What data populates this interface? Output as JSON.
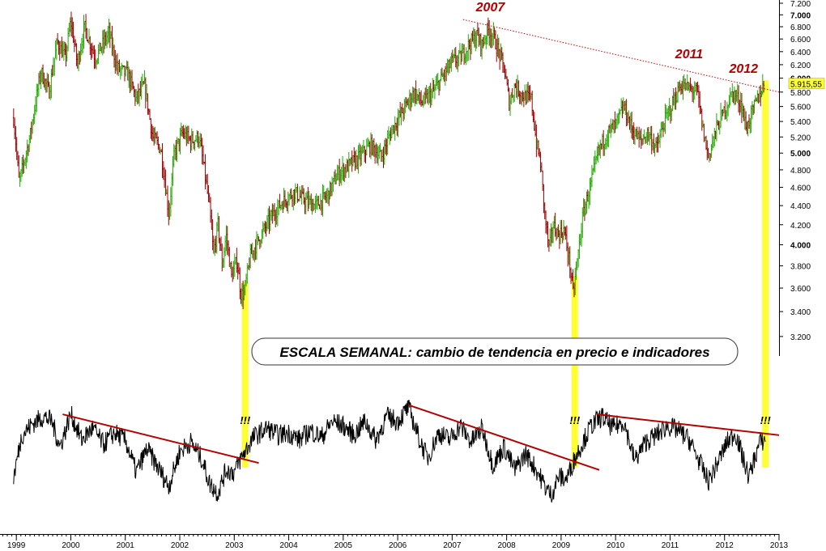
{
  "chart_data": {
    "type": "line",
    "title": "ESCALA SEMANAL: cambio de tendencia en precio e indicadores",
    "price_panel": {
      "type": "candlestick",
      "scale": "log",
      "ylim": [
        3100,
        7200
      ],
      "y_ticks": [
        {
          "value": 3200,
          "label": "3.200",
          "major": false
        },
        {
          "value": 3400,
          "label": "3.400",
          "major": false
        },
        {
          "value": 3600,
          "label": "3.600",
          "major": false
        },
        {
          "value": 3800,
          "label": "3.800",
          "major": false
        },
        {
          "value": 4000,
          "label": "4.000",
          "major": true
        },
        {
          "value": 4200,
          "label": "4.200",
          "major": false
        },
        {
          "value": 4400,
          "label": "4.400",
          "major": false
        },
        {
          "value": 4600,
          "label": "4.600",
          "major": false
        },
        {
          "value": 4800,
          "label": "4.800",
          "major": false
        },
        {
          "value": 5000,
          "label": "5.000",
          "major": true
        },
        {
          "value": 5200,
          "label": "5.200",
          "major": false
        },
        {
          "value": 5400,
          "label": "5.400",
          "major": false
        },
        {
          "value": 5600,
          "label": "5.600",
          "major": false
        },
        {
          "value": 5800,
          "label": "5.800",
          "major": false
        },
        {
          "value": 6000,
          "label": "6.000",
          "major": true
        },
        {
          "value": 6200,
          "label": "6.200",
          "major": false
        },
        {
          "value": 6400,
          "label": "6.400",
          "major": false
        },
        {
          "value": 6600,
          "label": "6.600",
          "major": false
        },
        {
          "value": 6800,
          "label": "6.800",
          "major": false
        },
        {
          "value": 7000,
          "label": "7.000",
          "major": true
        },
        {
          "value": 7200,
          "label": "7.200",
          "major": false
        }
      ],
      "last_price_label": "5.915,55",
      "last_price_value": 5915.55,
      "up_color": "#22aa00",
      "down_color": "#990000",
      "anchors": [
        [
          1998.95,
          5450
        ],
        [
          1999.05,
          4650
        ],
        [
          1999.25,
          5200
        ],
        [
          1999.45,
          6100
        ],
        [
          1999.6,
          5800
        ],
        [
          1999.75,
          6550
        ],
        [
          1999.9,
          6300
        ],
        [
          2000.0,
          6900
        ],
        [
          2000.12,
          6200
        ],
        [
          2000.25,
          6800
        ],
        [
          2000.45,
          6300
        ],
        [
          2000.7,
          6700
        ],
        [
          2000.85,
          6150
        ],
        [
          2001.05,
          6050
        ],
        [
          2001.2,
          5700
        ],
        [
          2001.35,
          5900
        ],
        [
          2001.5,
          5200
        ],
        [
          2001.65,
          5050
        ],
        [
          2001.8,
          4300
        ],
        [
          2001.9,
          5000
        ],
        [
          2002.05,
          5250
        ],
        [
          2002.2,
          5150
        ],
        [
          2002.35,
          5200
        ],
        [
          2002.45,
          4800
        ],
        [
          2002.55,
          4350
        ],
        [
          2002.62,
          3900
        ],
        [
          2002.7,
          4200
        ],
        [
          2002.78,
          3800
        ],
        [
          2002.85,
          4100
        ],
        [
          2002.95,
          3700
        ],
        [
          2003.05,
          3850
        ],
        [
          2003.12,
          3550
        ],
        [
          2003.18,
          3550
        ],
        [
          2003.3,
          3900
        ],
        [
          2003.5,
          4100
        ],
        [
          2003.7,
          4300
        ],
        [
          2003.9,
          4450
        ],
        [
          2004.1,
          4550
        ],
        [
          2004.3,
          4450
        ],
        [
          2004.5,
          4400
        ],
        [
          2004.7,
          4500
        ],
        [
          2004.9,
          4750
        ],
        [
          2005.1,
          4850
        ],
        [
          2005.3,
          4950
        ],
        [
          2005.5,
          5100
        ],
        [
          2005.7,
          4950
        ],
        [
          2005.9,
          5300
        ],
        [
          2006.1,
          5550
        ],
        [
          2006.3,
          5800
        ],
        [
          2006.45,
          5650
        ],
        [
          2006.65,
          5800
        ],
        [
          2006.85,
          6050
        ],
        [
          2007.0,
          6250
        ],
        [
          2007.15,
          6300
        ],
        [
          2007.3,
          6500
        ],
        [
          2007.45,
          6650
        ],
        [
          2007.55,
          6500
        ],
        [
          2007.65,
          6750
        ],
        [
          2007.75,
          6650
        ],
        [
          2007.85,
          6400
        ],
        [
          2007.95,
          6150
        ],
        [
          2008.05,
          5650
        ],
        [
          2008.15,
          5900
        ],
        [
          2008.3,
          5750
        ],
        [
          2008.45,
          5700
        ],
        [
          2008.55,
          5100
        ],
        [
          2008.62,
          4900
        ],
        [
          2008.7,
          4300
        ],
        [
          2008.78,
          3950
        ],
        [
          2008.85,
          4200
        ],
        [
          2008.95,
          4100
        ],
        [
          2009.05,
          4150
        ],
        [
          2009.15,
          3850
        ],
        [
          2009.22,
          3550
        ],
        [
          2009.3,
          3850
        ],
        [
          2009.4,
          4300
        ],
        [
          2009.55,
          4650
        ],
        [
          2009.7,
          5050
        ],
        [
          2009.85,
          5250
        ],
        [
          2010.0,
          5350
        ],
        [
          2010.15,
          5600
        ],
        [
          2010.3,
          5300
        ],
        [
          2010.45,
          5150
        ],
        [
          2010.6,
          5250
        ],
        [
          2010.75,
          5050
        ],
        [
          2010.9,
          5400
        ],
        [
          2011.05,
          5650
        ],
        [
          2011.2,
          5900
        ],
        [
          2011.35,
          5850
        ],
        [
          2011.5,
          5800
        ],
        [
          2011.6,
          5300
        ],
        [
          2011.7,
          4950
        ],
        [
          2011.85,
          5300
        ],
        [
          2012.0,
          5550
        ],
        [
          2012.15,
          5800
        ],
        [
          2012.3,
          5650
        ],
        [
          2012.4,
          5300
        ],
        [
          2012.5,
          5500
        ],
        [
          2012.6,
          5700
        ],
        [
          2012.72,
          5900
        ]
      ]
    },
    "indicator_panel": {
      "type": "line",
      "color": "#000000",
      "anchors": [
        [
          1998.95,
          -0.6
        ],
        [
          1999.1,
          0.3
        ],
        [
          1999.3,
          0.55
        ],
        [
          1999.5,
          0.7
        ],
        [
          1999.65,
          0.6
        ],
        [
          1999.8,
          0.05
        ],
        [
          2000.0,
          0.75
        ],
        [
          2000.2,
          0.2
        ],
        [
          2000.4,
          0.45
        ],
        [
          2000.6,
          0.1
        ],
        [
          2000.8,
          0.35
        ],
        [
          2001.0,
          0.2
        ],
        [
          2001.2,
          -0.5
        ],
        [
          2001.4,
          0.0
        ],
        [
          2001.6,
          -0.4
        ],
        [
          2001.8,
          -0.8
        ],
        [
          2002.0,
          -0.05
        ],
        [
          2002.2,
          0.15
        ],
        [
          2002.4,
          -0.2
        ],
        [
          2002.55,
          -0.75
        ],
        [
          2002.7,
          -0.95
        ],
        [
          2002.85,
          -0.45
        ],
        [
          2003.0,
          -0.5
        ],
        [
          2003.1,
          -0.25
        ],
        [
          2003.2,
          -0.05
        ],
        [
          2003.35,
          0.25
        ],
        [
          2003.6,
          0.45
        ],
        [
          2003.8,
          0.3
        ],
        [
          2004.0,
          0.35
        ],
        [
          2004.2,
          0.2
        ],
        [
          2004.4,
          0.4
        ],
        [
          2004.6,
          0.25
        ],
        [
          2004.8,
          0.6
        ],
        [
          2005.0,
          0.5
        ],
        [
          2005.2,
          0.3
        ],
        [
          2005.4,
          0.6
        ],
        [
          2005.6,
          0.2
        ],
        [
          2005.8,
          0.7
        ],
        [
          2006.0,
          0.6
        ],
        [
          2006.2,
          0.9
        ],
        [
          2006.4,
          0.2
        ],
        [
          2006.55,
          -0.2
        ],
        [
          2006.75,
          0.35
        ],
        [
          2006.95,
          0.2
        ],
        [
          2007.15,
          0.5
        ],
        [
          2007.35,
          0.15
        ],
        [
          2007.55,
          0.45
        ],
        [
          2007.75,
          -0.35
        ],
        [
          2007.95,
          0.05
        ],
        [
          2008.15,
          -0.45
        ],
        [
          2008.35,
          -0.1
        ],
        [
          2008.55,
          -0.45
        ],
        [
          2008.7,
          -0.8
        ],
        [
          2008.82,
          -1.0
        ],
        [
          2008.95,
          -0.6
        ],
        [
          2009.1,
          -0.65
        ],
        [
          2009.25,
          -0.2
        ],
        [
          2009.4,
          0.15
        ],
        [
          2009.55,
          0.5
        ],
        [
          2009.75,
          0.7
        ],
        [
          2009.95,
          0.45
        ],
        [
          2010.15,
          0.6
        ],
        [
          2010.35,
          -0.25
        ],
        [
          2010.55,
          0.15
        ],
        [
          2010.75,
          0.3
        ],
        [
          2010.95,
          0.5
        ],
        [
          2011.15,
          0.4
        ],
        [
          2011.35,
          0.2
        ],
        [
          2011.55,
          -0.3
        ],
        [
          2011.7,
          -0.7
        ],
        [
          2011.85,
          -0.35
        ],
        [
          2012.05,
          0.15
        ],
        [
          2012.2,
          0.35
        ],
        [
          2012.35,
          -0.25
        ],
        [
          2012.45,
          -0.6
        ],
        [
          2012.55,
          -0.2
        ],
        [
          2012.65,
          0.15
        ],
        [
          2012.75,
          0.2
        ]
      ]
    },
    "x_axis": {
      "xlim": [
        1998.7,
        2013.0
      ],
      "tick_labels": [
        {
          "value": 1999.0,
          "label": "1999"
        },
        {
          "value": 2000.0,
          "label": "2000"
        },
        {
          "value": 2001.0,
          "label": "2001"
        },
        {
          "value": 2002.0,
          "label": "2002"
        },
        {
          "value": 2003.0,
          "label": "2003"
        },
        {
          "value": 2004.0,
          "label": "2004"
        },
        {
          "value": 2005.0,
          "label": "2005"
        },
        {
          "value": 2006.0,
          "label": "2006"
        },
        {
          "value": 2007.0,
          "label": "2007"
        },
        {
          "value": 2008.0,
          "label": "2008"
        },
        {
          "value": 2009.0,
          "label": "2009"
        },
        {
          "value": 2010.0,
          "label": "2010"
        },
        {
          "value": 2011.0,
          "label": "2011"
        },
        {
          "value": 2012.0,
          "label": "2012"
        },
        {
          "value": 2013.0,
          "label": "2013"
        }
      ]
    },
    "annotations": {
      "year_labels": [
        {
          "text": "2007",
          "x": 2007.7,
          "y": 7060
        },
        {
          "text": "2011",
          "x": 2011.35,
          "y": 6300
        },
        {
          "text": "2012",
          "x": 2012.35,
          "y": 6080
        }
      ],
      "marker_text": "!!!",
      "highlight_color": "#ffff33",
      "highlight_x": [
        2003.2,
        2009.25,
        2012.75
      ],
      "resistance_line": {
        "x1": 2007.2,
        "y1": 6920,
        "x2": 2013.0,
        "y2": 5800,
        "color": "#cc0000"
      },
      "indicator_trendlines": [
        {
          "x1": 1999.85,
          "y1": 0.75,
          "x2": 2003.45,
          "y2": -0.3,
          "color": "#b30000"
        },
        {
          "x1": 2006.2,
          "y1": 0.95,
          "x2": 2009.7,
          "y2": -0.45,
          "color": "#b30000"
        },
        {
          "x1": 2009.65,
          "y1": 0.75,
          "x2": 2013.0,
          "y2": 0.3,
          "color": "#b30000"
        }
      ]
    }
  }
}
